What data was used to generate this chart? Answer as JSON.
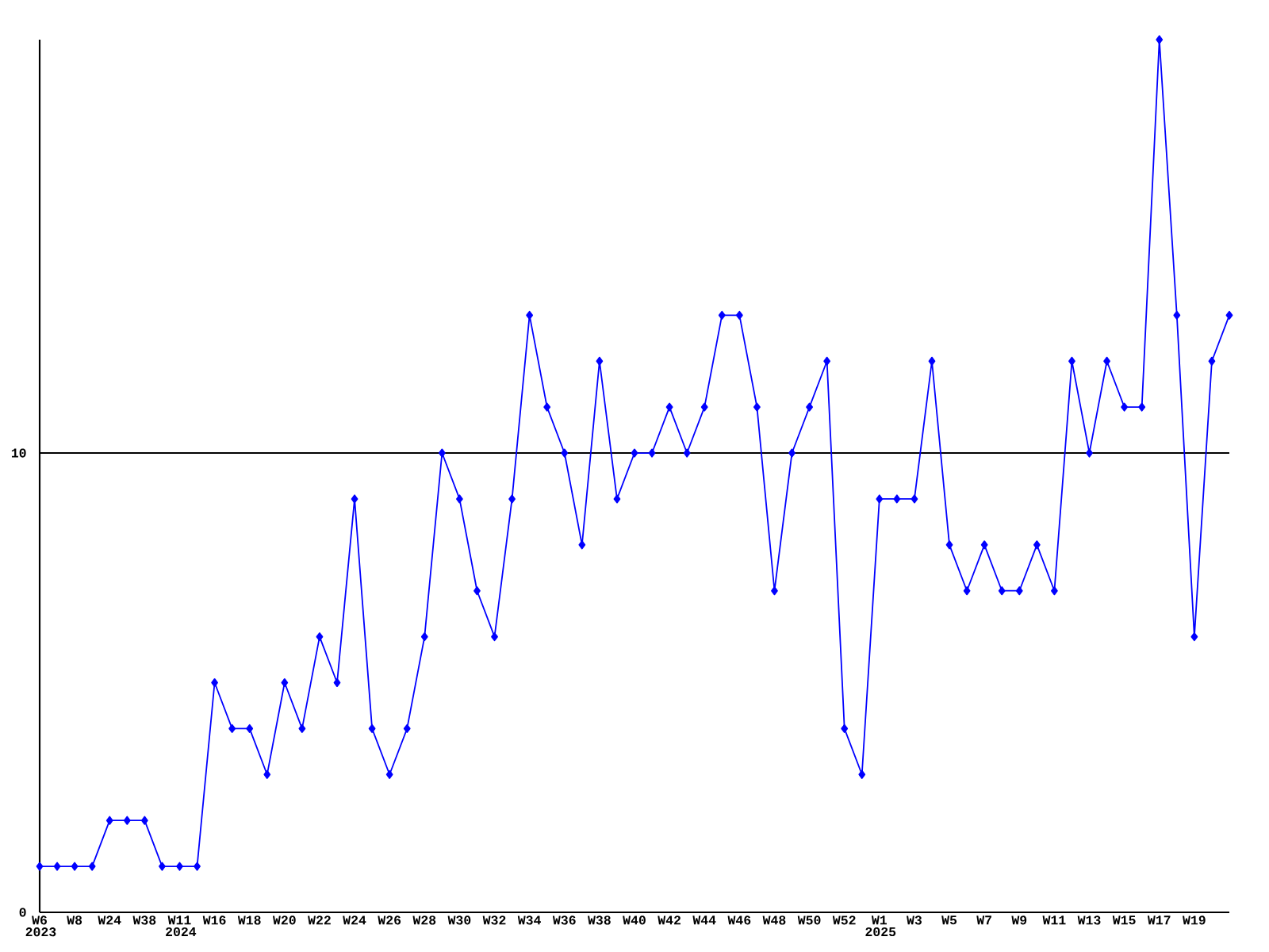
{
  "chart_data": {
    "type": "line",
    "categories": [
      "W6 2023",
      null,
      "W8",
      null,
      "W24",
      null,
      "W38",
      null,
      "W11 2024",
      null,
      "W16",
      null,
      "W18",
      null,
      "W20",
      null,
      "W22",
      null,
      "W24",
      null,
      "W26",
      null,
      "W28",
      null,
      "W30",
      null,
      "W32",
      null,
      "W34",
      null,
      "W36",
      null,
      "W38",
      null,
      "W40",
      null,
      "W42",
      null,
      "W44",
      null,
      "W46",
      null,
      "W48",
      null,
      "W50",
      null,
      "W52",
      null,
      "W1 2025",
      null,
      "W3",
      null,
      "W5",
      null,
      "W7",
      null,
      "W9",
      null,
      "W11",
      null,
      "W13",
      null,
      "W15",
      null,
      "W17",
      null,
      "W19",
      null,
      null
    ],
    "values": [
      1,
      1,
      1,
      1,
      2,
      2,
      2,
      1,
      1,
      1,
      5,
      4,
      4,
      3,
      5,
      4,
      6,
      5,
      9,
      4,
      3,
      4,
      6,
      10,
      9,
      7,
      6,
      9,
      13,
      11,
      10,
      8,
      12,
      9,
      10,
      10,
      11,
      10,
      11,
      13,
      13,
      11,
      7,
      10,
      11,
      12,
      4,
      3,
      9,
      9,
      9,
      12,
      8,
      7,
      8,
      7,
      7,
      8,
      7,
      12,
      10,
      12,
      11,
      11,
      19,
      13,
      6,
      12,
      13
    ],
    "color": "#0000ff",
    "ylim": [
      0,
      19
    ],
    "yticks": [
      0,
      10
    ],
    "grid": "y",
    "marker": "diamond",
    "line_style": "solid"
  }
}
